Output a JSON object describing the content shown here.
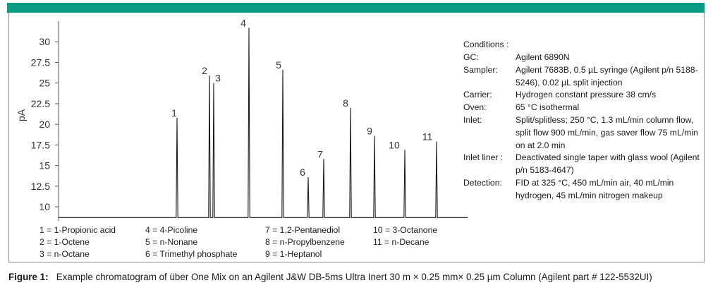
{
  "chart_data": {
    "type": "line",
    "ylabel": "pA",
    "xlabel": "",
    "ylim": [
      8.3,
      32.5
    ],
    "yticks": [
      10,
      12.5,
      15,
      17.5,
      20,
      22.5,
      25,
      27.5,
      30
    ],
    "ytick_labels": [
      "10",
      "12.5",
      "15",
      "17.5",
      "20",
      "22.5",
      "25",
      "27.5",
      "30"
    ],
    "baseline": 8.7,
    "grid": false,
    "peaks": [
      {
        "label": "1",
        "y": 20.8
      },
      {
        "label": "2",
        "y": 25.9
      },
      {
        "label": "3",
        "y": 25.0
      },
      {
        "label": "4",
        "y": 31.7
      },
      {
        "label": "5",
        "y": 26.6
      },
      {
        "label": "6",
        "y": 13.6
      },
      {
        "label": "7",
        "y": 15.8
      },
      {
        "label": "8",
        "y": 22.0
      },
      {
        "label": "9",
        "y": 18.6
      },
      {
        "label": "10",
        "y": 16.9
      },
      {
        "label": "11",
        "y": 17.9
      }
    ]
  },
  "legend": {
    "items": [
      "1 = 1-Propionic acid",
      "2 = 1-Octene",
      "3 = n-Octane",
      "4 = 4-Picoline",
      "5 = n-Nonane",
      "6 = Trimethyl phosphate",
      "7 = 1,2-Pentanediol",
      "8 = n-Propylbenzene",
      "9 = 1-Heptanol",
      "10 = 3-Octanone",
      "11 = n-Decane"
    ]
  },
  "conditions": {
    "title": "Conditions :",
    "rows": [
      {
        "label": "GC:",
        "value": "Agilent 6890N"
      },
      {
        "label": "Sampler:",
        "value": "Agilent 7683B, 0.5 µL syringe (Agilent p/n 5188-5246), 0.02 µL split injection"
      },
      {
        "label": "Carrier:",
        "value": "Hydrogen constant pressure 38 cm/s"
      },
      {
        "label": "Oven:",
        "value": "65 °C isothermal"
      },
      {
        "label": "Inlet:",
        "value": "Split/splitless; 250 °C, 1.3 mL/min column flow, split flow 900 mL/min, gas saver flow 75 mL/min on at 2.0 min"
      },
      {
        "label": "Inlet liner :",
        "value": "Deactivated single taper with glass wool (Agilent p/n 5183-4647)"
      },
      {
        "label": "Detection:",
        "value": "FID at 325 °C, 450 mL/min air, 40 mL/min hydrogen, 45 mL/min nitrogen makeup"
      }
    ]
  },
  "caption": {
    "label": "Figure 1:",
    "text": "Example chromatogram of über One Mix on an Agilent J&W DB-5ms Ultra Inert 30 m × 0.25 mm× 0.25 µm Column (Agilent part # 122-5532UI)"
  },
  "colors": {
    "accent_bar": "#0b9a82",
    "trace": "#1a1a1a",
    "axis": "#555555"
  }
}
